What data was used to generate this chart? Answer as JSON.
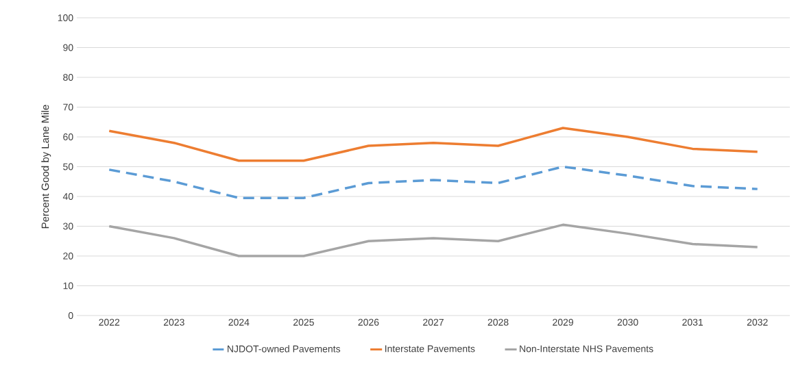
{
  "chart_data": {
    "type": "line",
    "ylabel": "Percent Good by Lane Mile",
    "categories": [
      "2022",
      "2023",
      "2024",
      "2025",
      "2026",
      "2027",
      "2028",
      "2029",
      "2030",
      "2031",
      "2032"
    ],
    "series": [
      {
        "name": "NJDOT-owned Pavements",
        "color": "#5b9bd5",
        "line_style": "dashed",
        "values": [
          49,
          45,
          39.5,
          39.5,
          44.5,
          45.5,
          44.5,
          50,
          47,
          43.5,
          42.5
        ]
      },
      {
        "name": "Interstate Pavements",
        "color": "#ed7d31",
        "line_style": "solid",
        "values": [
          62,
          58,
          52,
          52,
          57,
          58,
          57,
          63,
          60,
          56,
          55
        ]
      },
      {
        "name": "Non-Interstate NHS Pavements",
        "color": "#a5a5a5",
        "line_style": "solid",
        "values": [
          30,
          26,
          20,
          20,
          25,
          26,
          25,
          30.5,
          27.5,
          24,
          23
        ]
      }
    ],
    "ylim": [
      0,
      100
    ],
    "yticks": [
      0,
      10,
      20,
      30,
      40,
      50,
      60,
      70,
      80,
      90,
      100
    ],
    "grid": "y",
    "legend": "bottom",
    "marker": "none"
  }
}
